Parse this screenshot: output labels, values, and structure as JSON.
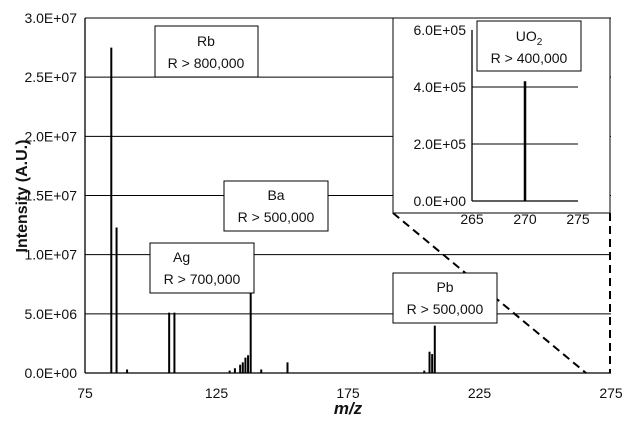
{
  "chart_data": {
    "type": "bar",
    "title": "",
    "xlabel": "m/z",
    "ylabel": "Intensity (A.U.)",
    "xlim": [
      75,
      275
    ],
    "ylim": [
      0,
      30000000
    ],
    "xticks": [
      "75",
      "125",
      "175",
      "225",
      "275"
    ],
    "yticks": [
      "0.0E+00",
      "5.0E+06",
      "1.0E+07",
      "1.5E+07",
      "2.0E+07",
      "2.5E+07",
      "3.0E+07"
    ],
    "grid": "horizontal",
    "series": [
      {
        "x": [
          85,
          87,
          91,
          107,
          109,
          130,
          132,
          134,
          135,
          136,
          137,
          138,
          142,
          152,
          204,
          206,
          207,
          208
        ],
        "values": [
          27500000,
          12300000,
          300000,
          5100000,
          5100000,
          200000,
          400000,
          700000,
          900000,
          1300000,
          1500000,
          10800000,
          300000,
          900000,
          200000,
          1800000,
          1600000,
          4000000
        ]
      }
    ],
    "annotations": [
      {
        "label": "Rb",
        "detail": "R > 800,000"
      },
      {
        "label": "Ag",
        "detail": "R > 700,000"
      },
      {
        "label": "Ba",
        "detail": "R > 500,000"
      },
      {
        "label": "Pb",
        "detail": "R > 500,000"
      }
    ],
    "inset": {
      "xlim": [
        265,
        275
      ],
      "ylim": [
        0,
        600000
      ],
      "xticks": [
        "265",
        "270",
        "275"
      ],
      "yticks": [
        "0.0E+00",
        "2.0E+05",
        "4.0E+05",
        "6.0E+05"
      ],
      "series": [
        {
          "x": [
            270
          ],
          "values": [
            420000
          ]
        }
      ],
      "annotation": {
        "label": "UO",
        "subscript": "2",
        "detail": "R > 400,000"
      }
    }
  }
}
